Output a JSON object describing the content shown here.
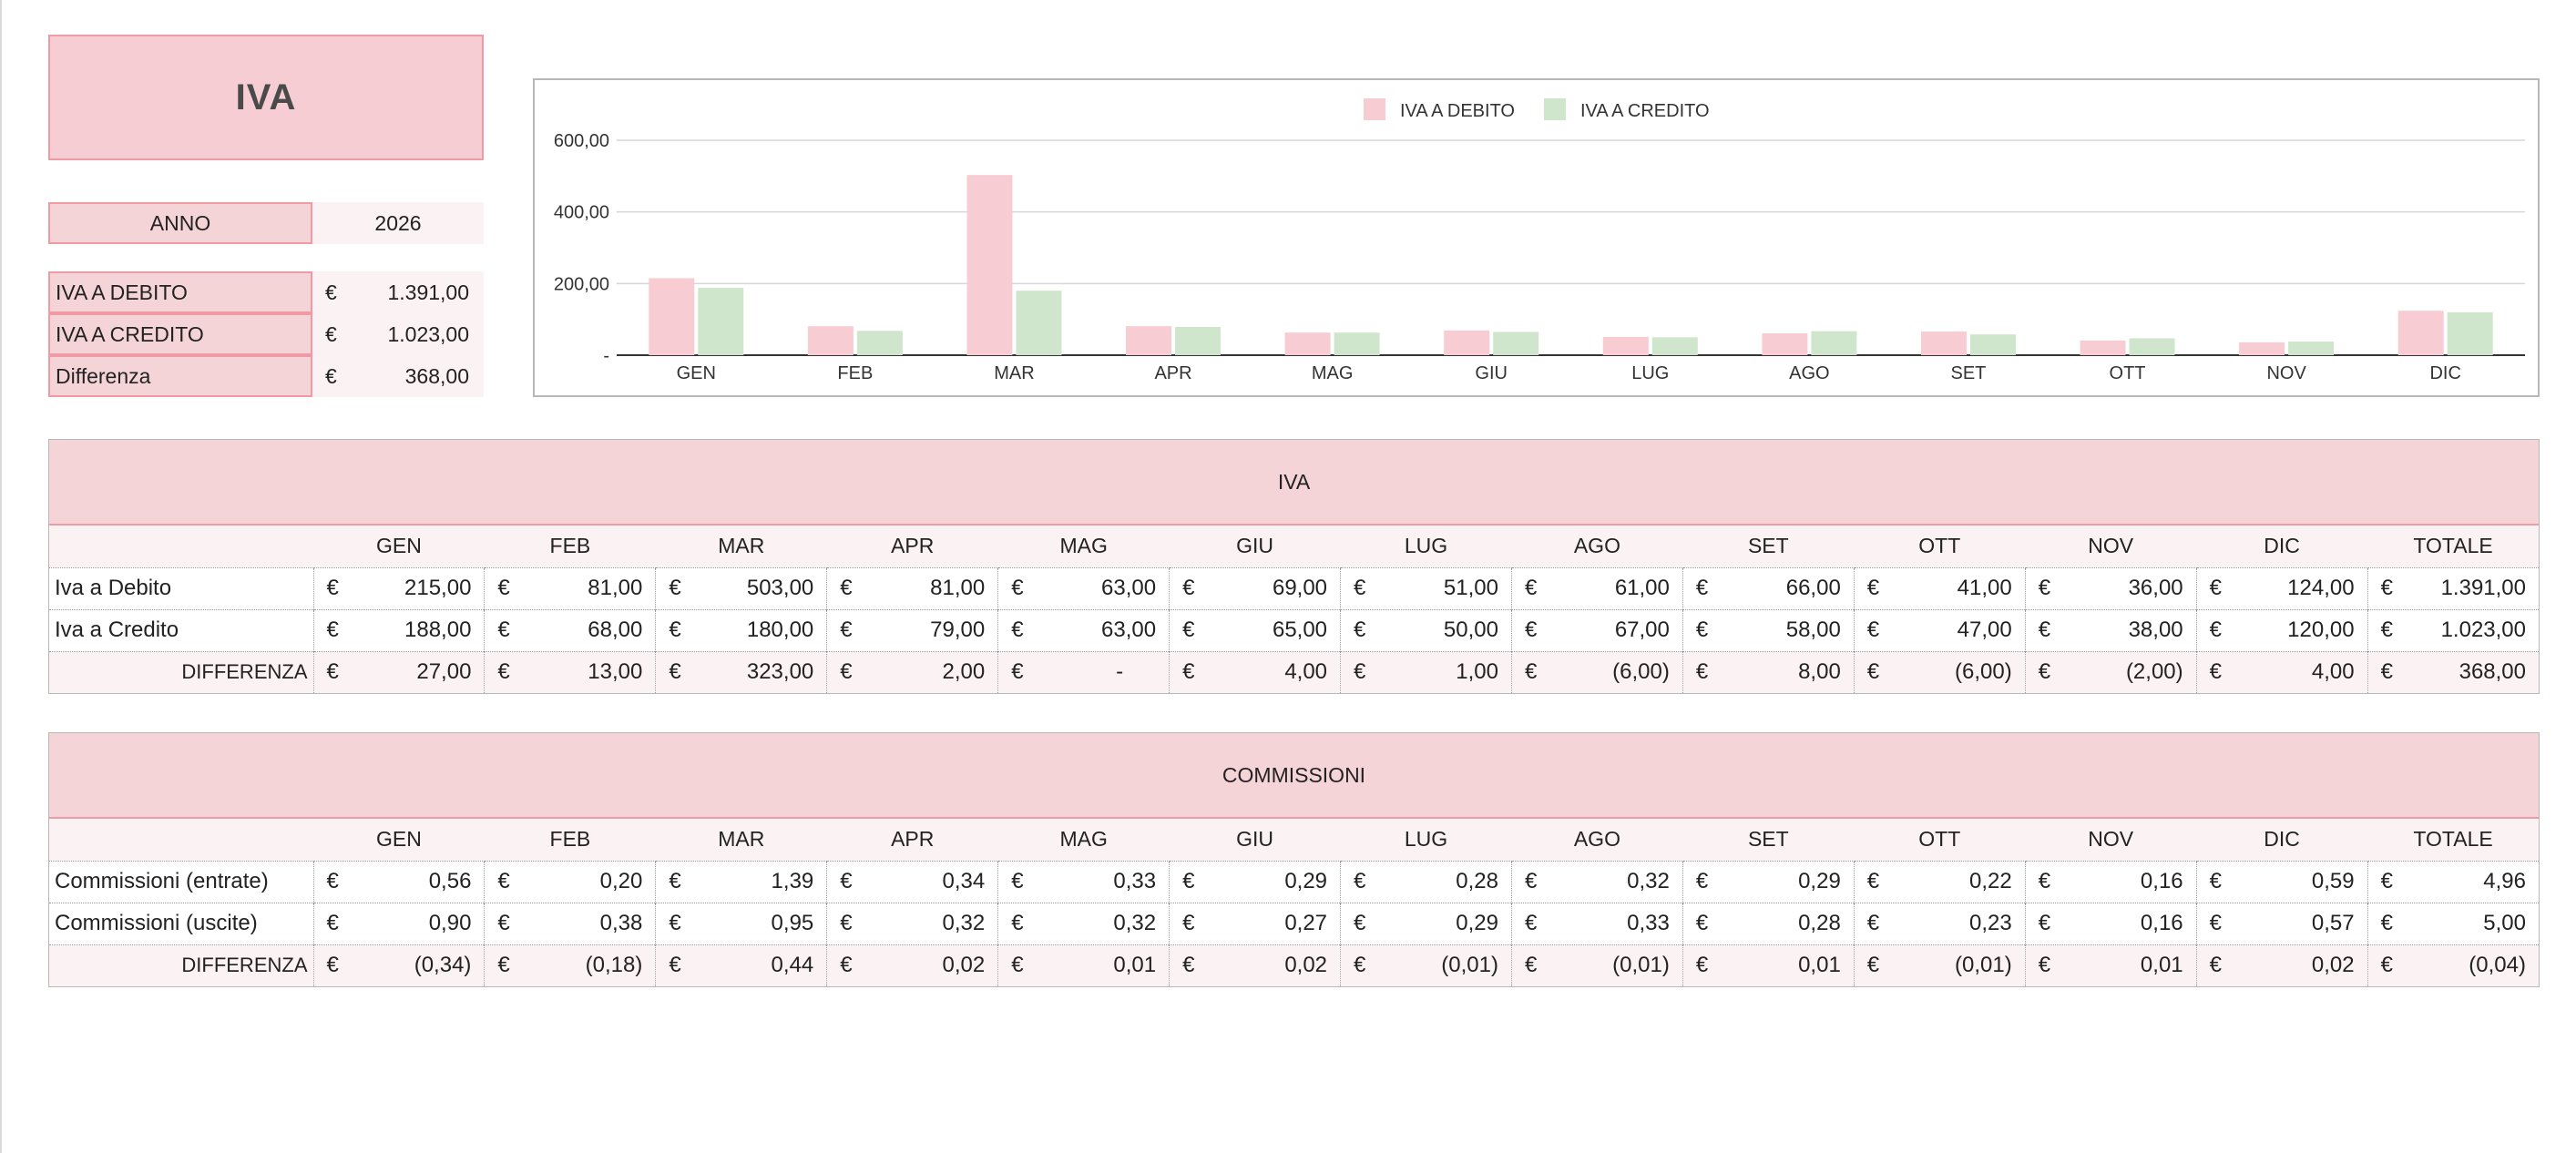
{
  "title": "IVA",
  "summary": {
    "anno_label": "ANNO",
    "anno_value": "2026",
    "currency": "€",
    "rows": [
      {
        "label": "IVA A DEBITO",
        "value": "1.391,00"
      },
      {
        "label": "IVA A CREDITO",
        "value": "1.023,00"
      },
      {
        "label": "Differenza",
        "value": "368,00"
      }
    ]
  },
  "chart_data": {
    "type": "bar",
    "categories": [
      "GEN",
      "FEB",
      "MAR",
      "APR",
      "MAG",
      "GIU",
      "LUG",
      "AGO",
      "SET",
      "OTT",
      "NOV",
      "DIC"
    ],
    "series": [
      {
        "name": "IVA A DEBITO",
        "color": "#f7ccd3",
        "values": [
          215,
          81,
          503,
          81,
          63,
          69,
          51,
          61,
          66,
          41,
          36,
          124
        ]
      },
      {
        "name": "IVA A CREDITO",
        "color": "#cfe6cc",
        "values": [
          188,
          68,
          180,
          79,
          63,
          65,
          50,
          67,
          58,
          47,
          38,
          120
        ]
      }
    ],
    "ylim": [
      0,
      600
    ],
    "yticks": [
      0,
      200,
      400,
      600
    ],
    "ytick_labels": [
      "-",
      "200,00",
      "400,00",
      "600,00"
    ],
    "legend": "top-center",
    "grid": true,
    "title": "",
    "xlabel": "",
    "ylabel": ""
  },
  "months": [
    "GEN",
    "FEB",
    "MAR",
    "APR",
    "MAG",
    "GIU",
    "LUG",
    "AGO",
    "SET",
    "OTT",
    "NOV",
    "DIC",
    "TOTALE"
  ],
  "iva_table": {
    "title": "IVA",
    "rows": [
      {
        "label": "Iva a Debito",
        "values": [
          "215,00",
          "81,00",
          "503,00",
          "81,00",
          "63,00",
          "69,00",
          "51,00",
          "61,00",
          "66,00",
          "41,00",
          "36,00",
          "124,00",
          "1.391,00"
        ]
      },
      {
        "label": "Iva a Credito",
        "values": [
          "188,00",
          "68,00",
          "180,00",
          "79,00",
          "63,00",
          "65,00",
          "50,00",
          "67,00",
          "58,00",
          "47,00",
          "38,00",
          "120,00",
          "1.023,00"
        ]
      },
      {
        "label": "DIFFERENZA",
        "values": [
          "27,00",
          "13,00",
          "323,00",
          "2,00",
          "-",
          "4,00",
          "1,00",
          "(6,00)",
          "8,00",
          "(6,00)",
          "(2,00)",
          "4,00",
          "368,00"
        ]
      }
    ]
  },
  "commissioni_table": {
    "title": "COMMISSIONI",
    "rows": [
      {
        "label": "Commissioni (entrate)",
        "values": [
          "0,56",
          "0,20",
          "1,39",
          "0,34",
          "0,33",
          "0,29",
          "0,28",
          "0,32",
          "0,29",
          "0,22",
          "0,16",
          "0,59",
          "4,96"
        ]
      },
      {
        "label": "Commissioni (uscite)",
        "values": [
          "0,90",
          "0,38",
          "0,95",
          "0,32",
          "0,32",
          "0,27",
          "0,29",
          "0,33",
          "0,28",
          "0,23",
          "0,16",
          "0,57",
          "5,00"
        ]
      },
      {
        "label": "DIFFERENZA",
        "values": [
          "(0,34)",
          "(0,18)",
          "0,44",
          "0,02",
          "0,01",
          "0,02",
          "(0,01)",
          "(0,01)",
          "0,01",
          "(0,01)",
          "0,01",
          "0,02",
          "(0,04)"
        ]
      }
    ]
  }
}
